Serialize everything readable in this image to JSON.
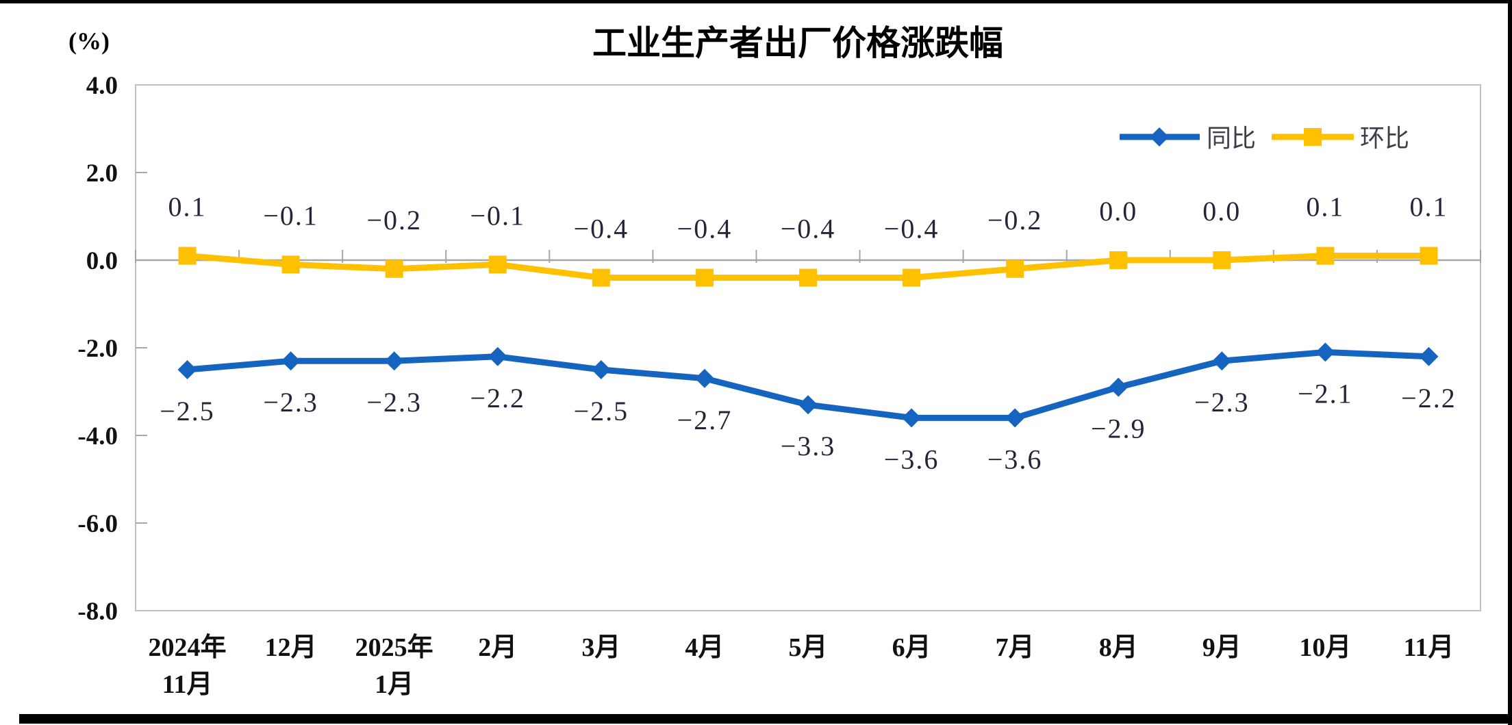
{
  "chart_data": {
    "type": "line",
    "title": "工业生产者出厂价格涨跌幅",
    "unit_label": "(%)",
    "categories": [
      [
        "2024年",
        "11月"
      ],
      [
        "12月"
      ],
      [
        "2025年",
        "1月"
      ],
      [
        "2月"
      ],
      [
        "3月"
      ],
      [
        "4月"
      ],
      [
        "5月"
      ],
      [
        "6月"
      ],
      [
        "7月"
      ],
      [
        "8月"
      ],
      [
        "9月"
      ],
      [
        "10月"
      ],
      [
        "11月"
      ]
    ],
    "series": [
      {
        "name": "同比",
        "marker": "diamond",
        "color": "#1565C0",
        "label_position": "below",
        "values": [
          -2.5,
          -2.3,
          -2.3,
          -2.2,
          -2.5,
          -2.7,
          -3.3,
          -3.6,
          -3.6,
          -2.9,
          -2.3,
          -2.1,
          -2.2
        ]
      },
      {
        "name": "环比",
        "marker": "square",
        "color": "#FFC000",
        "label_position": "above",
        "values": [
          0.1,
          -0.1,
          -0.2,
          -0.1,
          -0.4,
          -0.4,
          -0.4,
          -0.4,
          -0.2,
          0.0,
          0.0,
          0.1,
          0.1
        ]
      }
    ],
    "y_axis": {
      "min": -8.0,
      "max": 4.0,
      "step": 2.0,
      "tick_labels": [
        "4.0",
        "2.0",
        "0.0",
        "-2.0",
        "-4.0",
        "-6.0",
        "-8.0"
      ]
    },
    "legend_position": "top-right",
    "grid": false,
    "colors": {
      "axis": "#A6A6A6",
      "plot_border": "#C0C0C0",
      "text": "#111111",
      "data_label": "#222638"
    }
  }
}
